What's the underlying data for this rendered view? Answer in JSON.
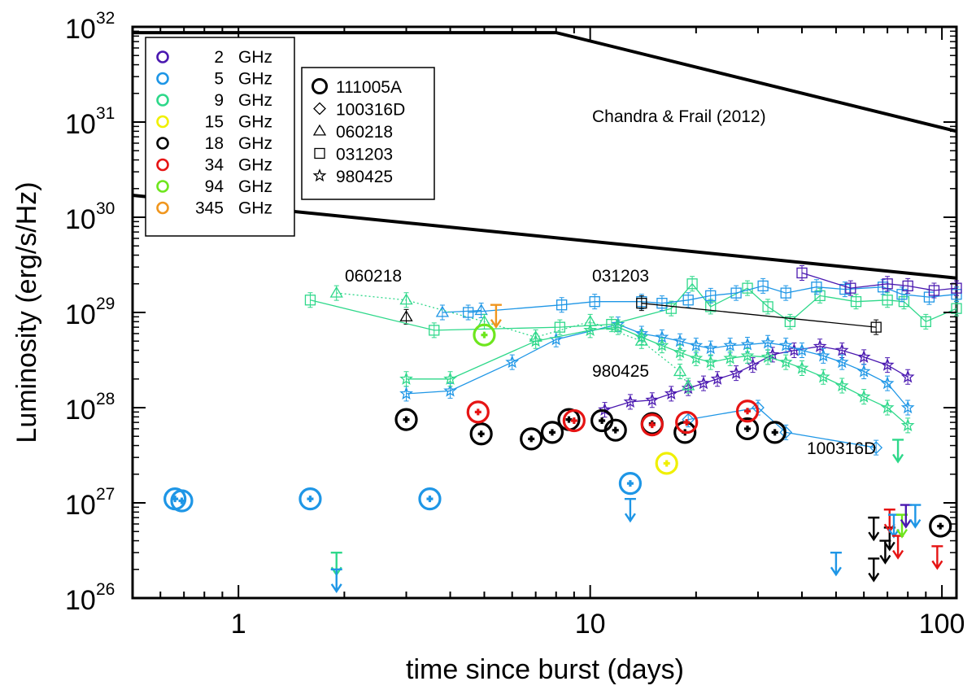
{
  "chart_data": {
    "type": "scatter",
    "title": "",
    "xlabel": "time since burst (days)",
    "ylabel": "Luminosity (erg/s/Hz)",
    "xscale": "log",
    "yscale": "log",
    "xlim": [
      0.5,
      110
    ],
    "ylim": [
      1e+26,
      1e+32
    ],
    "x_ticks": [
      {
        "value": 1,
        "label": "1"
      },
      {
        "value": 10,
        "label": "10"
      },
      {
        "value": 100,
        "label": "100"
      }
    ],
    "y_ticks": [
      {
        "value": 1e+26,
        "base": "10",
        "exp": "26"
      },
      {
        "value": 1e+27,
        "base": "10",
        "exp": "27"
      },
      {
        "value": 1e+28,
        "base": "10",
        "exp": "28"
      },
      {
        "value": 1e+29,
        "base": "10",
        "exp": "29"
      },
      {
        "value": 1e+30,
        "base": "10",
        "exp": "30"
      },
      {
        "value": 1e+31,
        "base": "10",
        "exp": "31"
      },
      {
        "value": 1e+32,
        "base": "10",
        "exp": "32"
      }
    ],
    "frequency_legend": [
      {
        "label": "2",
        "unit": "GHz",
        "color": "#4a18b0"
      },
      {
        "label": "5",
        "unit": "GHz",
        "color": "#1e96e6"
      },
      {
        "label": "9",
        "unit": "GHz",
        "color": "#2ed88a"
      },
      {
        "label": "15",
        "unit": "GHz",
        "color": "#f0f000"
      },
      {
        "label": "18",
        "unit": "GHz",
        "color": "#000000"
      },
      {
        "label": "34",
        "unit": "GHz",
        "color": "#e61414"
      },
      {
        "label": "94",
        "unit": "GHz",
        "color": "#6ee61e"
      },
      {
        "label": "345",
        "unit": "GHz",
        "color": "#f0961e"
      }
    ],
    "burst_legend": [
      {
        "label": "111005A",
        "marker": "circle"
      },
      {
        "label": "100316D",
        "marker": "diamond"
      },
      {
        "label": "060218",
        "marker": "triangle"
      },
      {
        "label": "031203",
        "marker": "square"
      },
      {
        "label": "980425",
        "marker": "star"
      }
    ],
    "annotations": {
      "envelope": "Chandra & Frail (2012)",
      "grb060218": "060218",
      "grb031203": "031203",
      "grb980425": "980425",
      "grb100316d": "100316D"
    },
    "envelope_upper": [
      {
        "x": 0.5,
        "y": 8.7e+31
      },
      {
        "x": 8.0,
        "y": 8.7e+31
      },
      {
        "x": 110,
        "y": 8e+30
      }
    ],
    "envelope_lower": [
      {
        "x": 0.5,
        "y": 1.7e+30
      },
      {
        "x": 110,
        "y": 2.3e+29
      }
    ],
    "series": [
      {
        "name": "980425 2 GHz",
        "marker": "star",
        "color": "#4a18b0",
        "line": "solid",
        "points": [
          [
            11,
            9.5e+27
          ],
          [
            13,
            1.15e+28
          ],
          [
            15,
            1.2e+28
          ],
          [
            17,
            1.4e+28
          ],
          [
            19,
            1.6e+28
          ],
          [
            21,
            1.8e+28
          ],
          [
            23,
            2e+28
          ],
          [
            26,
            2.3e+28
          ],
          [
            29,
            2.8e+28
          ],
          [
            33,
            3.6e+28
          ],
          [
            38,
            4e+28
          ],
          [
            45,
            4.4e+28
          ],
          [
            52,
            4e+28
          ],
          [
            60,
            3.4e+28
          ],
          [
            70,
            2.8e+28
          ],
          [
            80,
            2.1e+28
          ]
        ]
      },
      {
        "name": "980425 5 GHz",
        "marker": "star",
        "color": "#1e96e6",
        "line": "solid",
        "points": [
          [
            3,
            1.4e+28
          ],
          [
            4,
            1.5e+28
          ],
          [
            6,
            3e+28
          ],
          [
            8,
            5.2e+28
          ],
          [
            12,
            7.5e+28
          ],
          [
            14,
            6e+28
          ],
          [
            16,
            5.5e+28
          ],
          [
            18,
            5e+28
          ],
          [
            20,
            4.5e+28
          ],
          [
            22,
            4.2e+28
          ],
          [
            25,
            4.5e+28
          ],
          [
            28,
            4.6e+28
          ],
          [
            32,
            4.8e+28
          ],
          [
            36,
            4.5e+28
          ],
          [
            40,
            4e+28
          ],
          [
            46,
            3.5e+28
          ],
          [
            52,
            3e+28
          ],
          [
            60,
            2.4e+28
          ],
          [
            70,
            1.8e+28
          ],
          [
            80,
            1e+28
          ]
        ]
      },
      {
        "name": "980425 9 GHz",
        "marker": "star",
        "color": "#2ed88a",
        "line": "solid",
        "points": [
          [
            3,
            2e+28
          ],
          [
            4,
            2e+28
          ],
          [
            7,
            5e+28
          ],
          [
            10,
            6.5e+28
          ],
          [
            12,
            7e+28
          ],
          [
            14,
            5.5e+28
          ],
          [
            16,
            4.5e+28
          ],
          [
            18,
            3.8e+28
          ],
          [
            20,
            3.3e+28
          ],
          [
            22,
            3e+28
          ],
          [
            25,
            3.3e+28
          ],
          [
            28,
            3.5e+28
          ],
          [
            32,
            3.4e+28
          ],
          [
            36,
            3e+28
          ],
          [
            40,
            2.6e+28
          ],
          [
            46,
            2.1e+28
          ],
          [
            52,
            1.7e+28
          ],
          [
            60,
            1.3e+28
          ],
          [
            70,
            1e+28
          ],
          [
            80,
            6.5e+27
          ]
        ]
      },
      {
        "name": "060218 5 GHz",
        "marker": "triangle",
        "color": "#1e96e6",
        "line": "solid",
        "points": [
          [
            3.8,
            1e+29
          ],
          [
            4.9,
            1.05e+29
          ]
        ]
      },
      {
        "name": "060218 9 GHz",
        "marker": "triangle",
        "color": "#2ed88a",
        "line": "dotted",
        "points": [
          [
            1.9,
            1.6e+29
          ],
          [
            3.0,
            1.35e+29
          ],
          [
            5.0,
            8e+28
          ],
          [
            7.0,
            5.5e+28
          ],
          [
            10,
            8e+28
          ],
          [
            14,
            5e+28
          ],
          [
            18,
            2.4e+28
          ],
          [
            19,
            1.7e+28
          ]
        ]
      },
      {
        "name": "060218 18 GHz",
        "marker": "triangle",
        "color": "#000000",
        "line": "none",
        "points": [
          [
            3.0,
            9e+28
          ]
        ]
      },
      {
        "name": "031203 9 GHz",
        "marker": "square",
        "color": "#2ed88a",
        "line": "solid",
        "points": [
          [
            1.6,
            1.35e+29
          ],
          [
            3.6,
            6.5e+28
          ],
          [
            8.2,
            7e+28
          ],
          [
            11.5,
            7.5e+28
          ],
          [
            17,
            1.1e+29
          ],
          [
            19.5,
            2e+29
          ],
          [
            22,
            1.15e+29
          ],
          [
            28,
            1.8e+29
          ],
          [
            32,
            1.15e+29
          ],
          [
            37,
            8e+28
          ],
          [
            45,
            1.5e+29
          ],
          [
            57,
            1.3e+29
          ],
          [
            70,
            1.35e+29
          ],
          [
            78,
            1.3e+29
          ],
          [
            90,
            8e+28
          ],
          [
            110,
            1.1e+29
          ]
        ]
      },
      {
        "name": "031203 5 GHz",
        "marker": "square",
        "color": "#1e96e6",
        "line": "solid",
        "points": [
          [
            4.5,
            1e+29
          ],
          [
            8.3,
            1.2e+29
          ],
          [
            10.3,
            1.3e+29
          ],
          [
            14,
            1.3e+29
          ],
          [
            16,
            1.25e+29
          ],
          [
            19,
            1.35e+29
          ],
          [
            22,
            1.5e+29
          ],
          [
            26,
            1.6e+29
          ],
          [
            31,
            1.9e+29
          ],
          [
            36,
            1.6e+29
          ],
          [
            44,
            1.85e+29
          ],
          [
            53,
            1.75e+29
          ],
          [
            68,
            1.85e+29
          ],
          [
            77,
            1.55e+29
          ],
          [
            92,
            1.45e+29
          ],
          [
            110,
            1.55e+29
          ]
        ]
      },
      {
        "name": "031203 2 GHz",
        "marker": "square",
        "color": "#4a18b0",
        "line": "solid",
        "points": [
          [
            40,
            2.6e+29
          ],
          [
            55,
            1.8e+29
          ],
          [
            70,
            2e+29
          ],
          [
            80,
            1.9e+29
          ],
          [
            95,
            1.7e+29
          ],
          [
            110,
            1.8e+29
          ]
        ]
      },
      {
        "name": "031203 18 GHz",
        "marker": "square",
        "color": "#000000",
        "line": "solid",
        "points": [
          [
            14,
            1.25e+29
          ],
          [
            65,
            7e+28
          ]
        ]
      },
      {
        "name": "100316D 5 GHz",
        "marker": "diamond",
        "color": "#1e96e6",
        "line": "solid",
        "points": [
          [
            19,
            7.5e+27
          ],
          [
            30,
            1e+28
          ],
          [
            36,
            5.5e+27
          ],
          [
            65,
            3.8e+27
          ]
        ]
      },
      {
        "name": "111005A 18 GHz",
        "marker": "circle",
        "color": "#000000",
        "line": "none",
        "points": [
          [
            3.0,
            7.5e+27
          ],
          [
            4.9,
            5.3e+27
          ],
          [
            6.8,
            4.7e+27
          ],
          [
            7.8,
            5.5e+27
          ],
          [
            8.7,
            7.5e+27
          ],
          [
            10.8,
            7.3e+27
          ],
          [
            11.8,
            5.8e+27
          ],
          [
            15.0,
            6.8e+27
          ],
          [
            18.6,
            5.5e+27
          ],
          [
            28.0,
            6e+27
          ],
          [
            33.5,
            5.5e+27
          ],
          [
            99,
            5.7e+26
          ]
        ]
      },
      {
        "name": "111005A 34 GHz",
        "marker": "circle",
        "color": "#e61414",
        "line": "none",
        "points": [
          [
            4.8,
            9e+27
          ],
          [
            9.0,
            7.3e+27
          ],
          [
            15.0,
            6.6e+27
          ],
          [
            18.8,
            7e+27
          ],
          [
            28.0,
            9.2e+27
          ]
        ]
      },
      {
        "name": "111005A 5 GHz",
        "marker": "circle",
        "color": "#1e96e6",
        "line": "none",
        "points": [
          [
            0.66,
            1.1e+27
          ],
          [
            0.69,
            1.05e+27
          ],
          [
            1.6,
            1.1e+27
          ],
          [
            3.5,
            1.1e+27
          ],
          [
            13.0,
            1.6e+27
          ]
        ]
      },
      {
        "name": "111005A 15 GHz",
        "marker": "circle",
        "color": "#f0f000",
        "line": "none",
        "points": [
          [
            16.5,
            2.6e+27
          ]
        ]
      },
      {
        "name": "111005A 94 GHz",
        "marker": "circle",
        "color": "#6ee61e",
        "line": "none",
        "points": [
          [
            5.0,
            5.8e+28
          ]
        ]
      }
    ],
    "upper_limits": [
      {
        "x": 5.4,
        "y": 1.2e+29,
        "color": "#f0961e"
      },
      {
        "x": 1.9,
        "y": 3e+26,
        "color": "#2ed88a"
      },
      {
        "x": 1.9,
        "y": 2e+26,
        "color": "#1e96e6"
      },
      {
        "x": 13.0,
        "y": 1.1e+27,
        "color": "#1e96e6"
      },
      {
        "x": 75,
        "y": 4.6e+27,
        "color": "#2ed88a"
      },
      {
        "x": 50,
        "y": 3e+26,
        "color": "#1e96e6"
      },
      {
        "x": 64,
        "y": 2.6e+26,
        "color": "#000000"
      },
      {
        "x": 64,
        "y": 7e+26,
        "color": "#000000"
      },
      {
        "x": 69,
        "y": 4e+26,
        "color": "#000000"
      },
      {
        "x": 71,
        "y": 5.5e+26,
        "color": "#000000"
      },
      {
        "x": 71,
        "y": 8.5e+26,
        "color": "#e61414"
      },
      {
        "x": 73,
        "y": 7.5e+26,
        "color": "#1e96e6"
      },
      {
        "x": 75,
        "y": 4.5e+26,
        "color": "#e61414"
      },
      {
        "x": 77,
        "y": 7.5e+26,
        "color": "#6ee61e"
      },
      {
        "x": 79,
        "y": 9.5e+26,
        "color": "#4a18b0"
      },
      {
        "x": 84,
        "y": 9.5e+26,
        "color": "#1e96e6"
      },
      {
        "x": 97,
        "y": 3.5e+26,
        "color": "#e61414"
      }
    ]
  }
}
